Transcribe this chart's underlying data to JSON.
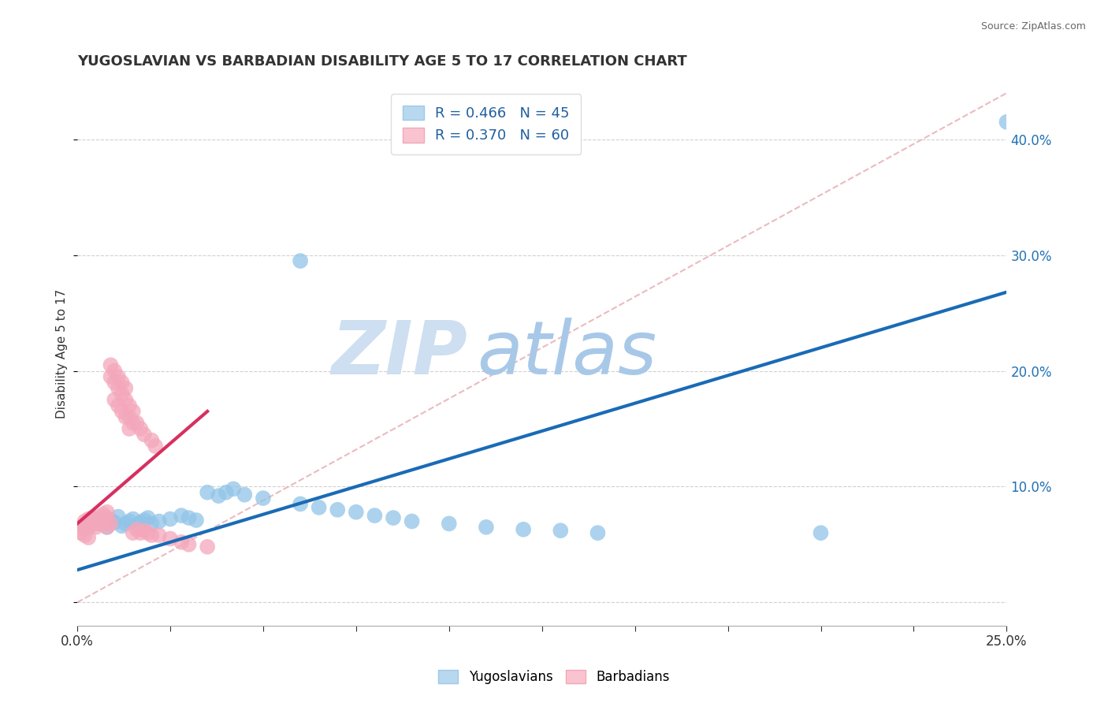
{
  "title": "YUGOSLAVIAN VS BARBADIAN DISABILITY AGE 5 TO 17 CORRELATION CHART",
  "source": "Source: ZipAtlas.com",
  "ylabel": "Disability Age 5 to 17",
  "xlim": [
    0.0,
    0.25
  ],
  "ylim": [
    -0.02,
    0.45
  ],
  "blue_R": 0.466,
  "blue_N": 45,
  "pink_R": 0.37,
  "pink_N": 60,
  "blue_color": "#90c4e8",
  "pink_color": "#f4a7bb",
  "blue_line_color": "#1a6bb5",
  "pink_line_color": "#d63060",
  "diagonal_color": "#e8b4b8",
  "background_color": "#ffffff",
  "watermark_zip": "ZIP",
  "watermark_atlas": "atlas",
  "watermark_color_zip": "#cddff0",
  "watermark_color_atlas": "#a8c8e8",
  "blue_scatter": [
    [
      0.002,
      0.065
    ],
    [
      0.003,
      0.068
    ],
    [
      0.004,
      0.072
    ],
    [
      0.005,
      0.07
    ],
    [
      0.006,
      0.068
    ],
    [
      0.007,
      0.073
    ],
    [
      0.008,
      0.065
    ],
    [
      0.009,
      0.071
    ],
    [
      0.01,
      0.069
    ],
    [
      0.011,
      0.074
    ],
    [
      0.012,
      0.066
    ],
    [
      0.013,
      0.068
    ],
    [
      0.014,
      0.07
    ],
    [
      0.015,
      0.072
    ],
    [
      0.016,
      0.067
    ],
    [
      0.017,
      0.069
    ],
    [
      0.018,
      0.071
    ],
    [
      0.019,
      0.073
    ],
    [
      0.02,
      0.068
    ],
    [
      0.022,
      0.07
    ],
    [
      0.025,
      0.072
    ],
    [
      0.028,
      0.075
    ],
    [
      0.03,
      0.073
    ],
    [
      0.032,
      0.071
    ],
    [
      0.035,
      0.095
    ],
    [
      0.038,
      0.092
    ],
    [
      0.04,
      0.095
    ],
    [
      0.042,
      0.098
    ],
    [
      0.045,
      0.093
    ],
    [
      0.05,
      0.09
    ],
    [
      0.06,
      0.085
    ],
    [
      0.065,
      0.082
    ],
    [
      0.07,
      0.08
    ],
    [
      0.075,
      0.078
    ],
    [
      0.08,
      0.075
    ],
    [
      0.085,
      0.073
    ],
    [
      0.09,
      0.07
    ],
    [
      0.1,
      0.068
    ],
    [
      0.11,
      0.065
    ],
    [
      0.12,
      0.063
    ],
    [
      0.13,
      0.062
    ],
    [
      0.14,
      0.06
    ],
    [
      0.06,
      0.295
    ],
    [
      0.2,
      0.06
    ],
    [
      0.25,
      0.415
    ]
  ],
  "pink_scatter": [
    [
      0.001,
      0.065
    ],
    [
      0.002,
      0.067
    ],
    [
      0.002,
      0.07
    ],
    [
      0.003,
      0.068
    ],
    [
      0.003,
      0.072
    ],
    [
      0.003,
      0.065
    ],
    [
      0.004,
      0.07
    ],
    [
      0.004,
      0.073
    ],
    [
      0.004,
      0.067
    ],
    [
      0.005,
      0.068
    ],
    [
      0.005,
      0.072
    ],
    [
      0.005,
      0.065
    ],
    [
      0.006,
      0.07
    ],
    [
      0.006,
      0.074
    ],
    [
      0.006,
      0.068
    ],
    [
      0.007,
      0.072
    ],
    [
      0.007,
      0.076
    ],
    [
      0.007,
      0.069
    ],
    [
      0.008,
      0.073
    ],
    [
      0.008,
      0.078
    ],
    [
      0.008,
      0.065
    ],
    [
      0.009,
      0.068
    ],
    [
      0.009,
      0.195
    ],
    [
      0.009,
      0.205
    ],
    [
      0.01,
      0.19
    ],
    [
      0.01,
      0.2
    ],
    [
      0.01,
      0.175
    ],
    [
      0.011,
      0.185
    ],
    [
      0.011,
      0.195
    ],
    [
      0.011,
      0.17
    ],
    [
      0.012,
      0.18
    ],
    [
      0.012,
      0.19
    ],
    [
      0.012,
      0.165
    ],
    [
      0.013,
      0.175
    ],
    [
      0.013,
      0.185
    ],
    [
      0.013,
      0.16
    ],
    [
      0.014,
      0.17
    ],
    [
      0.014,
      0.16
    ],
    [
      0.014,
      0.15
    ],
    [
      0.015,
      0.165
    ],
    [
      0.015,
      0.155
    ],
    [
      0.015,
      0.06
    ],
    [
      0.016,
      0.063
    ],
    [
      0.016,
      0.155
    ],
    [
      0.017,
      0.06
    ],
    [
      0.017,
      0.15
    ],
    [
      0.018,
      0.062
    ],
    [
      0.018,
      0.145
    ],
    [
      0.019,
      0.06
    ],
    [
      0.02,
      0.14
    ],
    [
      0.02,
      0.058
    ],
    [
      0.021,
      0.135
    ],
    [
      0.022,
      0.058
    ],
    [
      0.025,
      0.055
    ],
    [
      0.028,
      0.052
    ],
    [
      0.03,
      0.05
    ],
    [
      0.001,
      0.06
    ],
    [
      0.002,
      0.058
    ],
    [
      0.035,
      0.048
    ],
    [
      0.003,
      0.056
    ]
  ],
  "blue_line": {
    "x0": 0.0,
    "x1": 0.25,
    "y0": 0.028,
    "y1": 0.268
  },
  "pink_line": {
    "x0": 0.0,
    "x1": 0.035,
    "y0": 0.068,
    "y1": 0.165
  },
  "diag_line": {
    "x0": 0.0,
    "x1": 0.25,
    "y0": 0.0,
    "y1": 0.44
  }
}
